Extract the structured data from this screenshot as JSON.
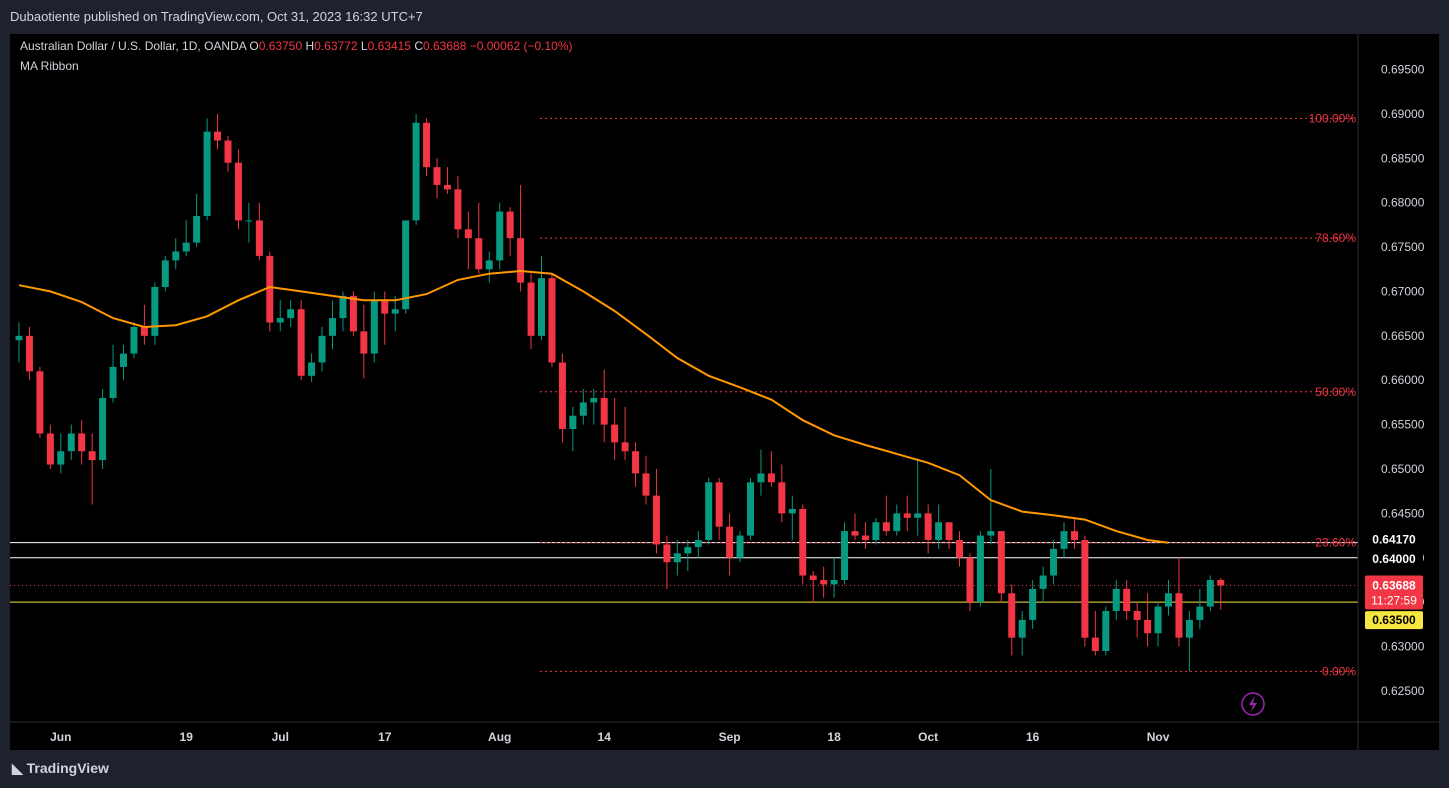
{
  "header": {
    "published": "Dubaotiente published on TradingView.com, Oct 31, 2023 16:32 UTC+7"
  },
  "legend": {
    "symbol": "Australian Dollar / U.S. Dollar, 1D, OANDA",
    "open_label": "O",
    "open": "0.63750",
    "high_label": "H",
    "high": "0.63772",
    "low_label": "L",
    "low": "0.63415",
    "close_label": "C",
    "close": "0.63688",
    "change": "−0.00062 (−0.10%)",
    "indicator": "MA Ribbon"
  },
  "footer": {
    "brand": "TradingView"
  },
  "colors": {
    "up": "#089981",
    "down": "#f23645",
    "ma": "#ff9800",
    "fib": "#f23645",
    "yellow": "#f5e642"
  },
  "chart_data": {
    "type": "candlestick",
    "ylim": [
      0.6215,
      0.699
    ],
    "y_ticks": [
      "0.69500",
      "0.69000",
      "0.68500",
      "0.68000",
      "0.67500",
      "0.67000",
      "0.66500",
      "0.66000",
      "0.65500",
      "0.65000",
      "0.64500",
      "0.64000",
      "0.63500",
      "0.63000",
      "0.62500"
    ],
    "x_ticks": [
      {
        "label": "Jun",
        "i": 4
      },
      {
        "label": "19",
        "i": 16
      },
      {
        "label": "Jul",
        "i": 25
      },
      {
        "label": "17",
        "i": 35
      },
      {
        "label": "Aug",
        "i": 46
      },
      {
        "label": "14",
        "i": 56
      },
      {
        "label": "Sep",
        "i": 68
      },
      {
        "label": "18",
        "i": 78
      },
      {
        "label": "Oct",
        "i": 87
      },
      {
        "label": "16",
        "i": 97
      },
      {
        "label": "Nov",
        "i": 109
      }
    ],
    "fib_levels": [
      {
        "label": "100.00%",
        "price": 0.6895
      },
      {
        "label": "78.60%",
        "price": 0.676
      },
      {
        "label": "50.00%",
        "price": 0.6587
      },
      {
        "label": "23.60%",
        "price": 0.6417
      },
      {
        "label": "0.00%",
        "price": 0.6272
      }
    ],
    "horizontal_lines": [
      {
        "label": "0.64170",
        "price": 0.6417,
        "color": "#ffffff"
      },
      {
        "label": "0.64000",
        "price": 0.64,
        "color": "#ffffff"
      },
      {
        "label": "0.63500",
        "price": 0.635,
        "color": "#f5e642"
      }
    ],
    "last_price": {
      "label": "0.63688",
      "price": 0.63688,
      "countdown": "11:27:59"
    },
    "ohlc": [
      [
        0.6645,
        0.6665,
        0.662,
        0.665
      ],
      [
        0.665,
        0.666,
        0.66,
        0.661
      ],
      [
        0.661,
        0.6615,
        0.6535,
        0.654
      ],
      [
        0.654,
        0.655,
        0.65,
        0.6505
      ],
      [
        0.6505,
        0.654,
        0.6495,
        0.652
      ],
      [
        0.652,
        0.655,
        0.651,
        0.654
      ],
      [
        0.654,
        0.6555,
        0.6505,
        0.652
      ],
      [
        0.652,
        0.654,
        0.646,
        0.651
      ],
      [
        0.651,
        0.659,
        0.65,
        0.658
      ],
      [
        0.658,
        0.664,
        0.6575,
        0.6615
      ],
      [
        0.6615,
        0.664,
        0.66,
        0.663
      ],
      [
        0.663,
        0.6665,
        0.6625,
        0.666
      ],
      [
        0.666,
        0.6685,
        0.664,
        0.665
      ],
      [
        0.665,
        0.671,
        0.664,
        0.6705
      ],
      [
        0.6705,
        0.674,
        0.67,
        0.6735
      ],
      [
        0.6735,
        0.676,
        0.6725,
        0.6745
      ],
      [
        0.6745,
        0.678,
        0.674,
        0.6755
      ],
      [
        0.6755,
        0.681,
        0.675,
        0.6785
      ],
      [
        0.6785,
        0.6895,
        0.678,
        0.688
      ],
      [
        0.688,
        0.69,
        0.686,
        0.687
      ],
      [
        0.687,
        0.6875,
        0.6835,
        0.6845
      ],
      [
        0.6845,
        0.686,
        0.677,
        0.678
      ],
      [
        0.678,
        0.68,
        0.6755,
        0.678
      ],
      [
        0.678,
        0.68,
        0.6735,
        0.674
      ],
      [
        0.674,
        0.6745,
        0.6655,
        0.6665
      ],
      [
        0.6665,
        0.669,
        0.6655,
        0.667
      ],
      [
        0.667,
        0.669,
        0.666,
        0.668
      ],
      [
        0.668,
        0.669,
        0.66,
        0.6605
      ],
      [
        0.6605,
        0.663,
        0.6598,
        0.662
      ],
      [
        0.662,
        0.666,
        0.661,
        0.665
      ],
      [
        0.665,
        0.669,
        0.6635,
        0.667
      ],
      [
        0.667,
        0.67,
        0.6655,
        0.6695
      ],
      [
        0.6695,
        0.67,
        0.665,
        0.6655
      ],
      [
        0.6655,
        0.6685,
        0.6602,
        0.663
      ],
      [
        0.663,
        0.67,
        0.662,
        0.669
      ],
      [
        0.669,
        0.67,
        0.664,
        0.6675
      ],
      [
        0.6675,
        0.6695,
        0.6655,
        0.668
      ],
      [
        0.668,
        0.678,
        0.6675,
        0.678
      ],
      [
        0.678,
        0.69,
        0.6775,
        0.689
      ],
      [
        0.689,
        0.6895,
        0.683,
        0.684
      ],
      [
        0.684,
        0.685,
        0.6805,
        0.682
      ],
      [
        0.682,
        0.684,
        0.681,
        0.6815
      ],
      [
        0.6815,
        0.683,
        0.676,
        0.677
      ],
      [
        0.677,
        0.679,
        0.6725,
        0.676
      ],
      [
        0.676,
        0.68,
        0.672,
        0.6725
      ],
      [
        0.6725,
        0.6745,
        0.671,
        0.6735
      ],
      [
        0.6735,
        0.68,
        0.6725,
        0.679
      ],
      [
        0.679,
        0.6795,
        0.674,
        0.676
      ],
      [
        0.676,
        0.682,
        0.67,
        0.671
      ],
      [
        0.671,
        0.672,
        0.6635,
        0.665
      ],
      [
        0.665,
        0.674,
        0.6645,
        0.6715
      ],
      [
        0.6715,
        0.672,
        0.6615,
        0.662
      ],
      [
        0.662,
        0.663,
        0.653,
        0.6545
      ],
      [
        0.6545,
        0.657,
        0.652,
        0.656
      ],
      [
        0.656,
        0.659,
        0.655,
        0.6575
      ],
      [
        0.6575,
        0.659,
        0.655,
        0.658
      ],
      [
        0.658,
        0.6612,
        0.653,
        0.655
      ],
      [
        0.655,
        0.658,
        0.651,
        0.653
      ],
      [
        0.653,
        0.657,
        0.651,
        0.652
      ],
      [
        0.652,
        0.653,
        0.648,
        0.6495
      ],
      [
        0.6495,
        0.6515,
        0.646,
        0.647
      ],
      [
        0.647,
        0.65,
        0.6405,
        0.6415
      ],
      [
        0.6415,
        0.6425,
        0.6365,
        0.6395
      ],
      [
        0.6395,
        0.642,
        0.638,
        0.6405
      ],
      [
        0.6405,
        0.642,
        0.6385,
        0.6412
      ],
      [
        0.6412,
        0.643,
        0.64,
        0.642
      ],
      [
        0.642,
        0.649,
        0.6415,
        0.6485
      ],
      [
        0.6485,
        0.649,
        0.642,
        0.6435
      ],
      [
        0.6435,
        0.645,
        0.638,
        0.64
      ],
      [
        0.64,
        0.643,
        0.6395,
        0.6425
      ],
      [
        0.6425,
        0.649,
        0.642,
        0.6485
      ],
      [
        0.6485,
        0.6522,
        0.647,
        0.6495
      ],
      [
        0.6495,
        0.652,
        0.648,
        0.6485
      ],
      [
        0.6485,
        0.6505,
        0.644,
        0.645
      ],
      [
        0.645,
        0.647,
        0.642,
        0.6455
      ],
      [
        0.6455,
        0.646,
        0.637,
        0.638
      ],
      [
        0.638,
        0.6385,
        0.635,
        0.6375
      ],
      [
        0.6375,
        0.639,
        0.6355,
        0.637
      ],
      [
        0.637,
        0.64,
        0.6355,
        0.6375
      ],
      [
        0.6375,
        0.644,
        0.637,
        0.643
      ],
      [
        0.643,
        0.645,
        0.642,
        0.6425
      ],
      [
        0.6425,
        0.644,
        0.641,
        0.642
      ],
      [
        0.642,
        0.6445,
        0.6415,
        0.644
      ],
      [
        0.644,
        0.647,
        0.6425,
        0.643
      ],
      [
        0.643,
        0.646,
        0.6425,
        0.645
      ],
      [
        0.645,
        0.647,
        0.643,
        0.6445
      ],
      [
        0.6445,
        0.6512,
        0.6425,
        0.645
      ],
      [
        0.645,
        0.646,
        0.6405,
        0.642
      ],
      [
        0.642,
        0.646,
        0.641,
        0.644
      ],
      [
        0.644,
        0.644,
        0.641,
        0.642
      ],
      [
        0.642,
        0.643,
        0.639,
        0.64
      ],
      [
        0.64,
        0.6405,
        0.634,
        0.635
      ],
      [
        0.635,
        0.643,
        0.6345,
        0.6425
      ],
      [
        0.6425,
        0.65,
        0.6415,
        0.643
      ],
      [
        0.643,
        0.643,
        0.635,
        0.636
      ],
      [
        0.636,
        0.637,
        0.629,
        0.631
      ],
      [
        0.631,
        0.634,
        0.629,
        0.633
      ],
      [
        0.633,
        0.6375,
        0.632,
        0.6365
      ],
      [
        0.6365,
        0.639,
        0.635,
        0.638
      ],
      [
        0.638,
        0.642,
        0.637,
        0.641
      ],
      [
        0.641,
        0.644,
        0.64,
        0.643
      ],
      [
        0.643,
        0.6445,
        0.641,
        0.642
      ],
      [
        0.642,
        0.6425,
        0.63,
        0.631
      ],
      [
        0.631,
        0.634,
        0.629,
        0.6295
      ],
      [
        0.6295,
        0.6345,
        0.629,
        0.634
      ],
      [
        0.634,
        0.6375,
        0.633,
        0.6365
      ],
      [
        0.6365,
        0.6375,
        0.633,
        0.634
      ],
      [
        0.634,
        0.635,
        0.631,
        0.633
      ],
      [
        0.633,
        0.636,
        0.63,
        0.6315
      ],
      [
        0.6315,
        0.635,
        0.63,
        0.6345
      ],
      [
        0.6345,
        0.6375,
        0.6335,
        0.636
      ],
      [
        0.636,
        0.64,
        0.63,
        0.631
      ],
      [
        0.631,
        0.634,
        0.6272,
        0.633
      ],
      [
        0.633,
        0.6365,
        0.632,
        0.6345
      ],
      [
        0.6345,
        0.638,
        0.634,
        0.6375
      ],
      [
        0.6375,
        0.63772,
        0.63415,
        0.63688
      ]
    ],
    "ma": [
      [
        0,
        0.6707
      ],
      [
        3,
        0.67
      ],
      [
        6,
        0.6688
      ],
      [
        9,
        0.667
      ],
      [
        12,
        0.666
      ],
      [
        15,
        0.6662
      ],
      [
        18,
        0.6672
      ],
      [
        21,
        0.669
      ],
      [
        24,
        0.6705
      ],
      [
        27,
        0.67
      ],
      [
        30,
        0.6695
      ],
      [
        33,
        0.669
      ],
      [
        36,
        0.669
      ],
      [
        39,
        0.6697
      ],
      [
        42,
        0.6713
      ],
      [
        45,
        0.672
      ],
      [
        48,
        0.6723
      ],
      [
        51,
        0.672
      ],
      [
        54,
        0.67
      ],
      [
        57,
        0.6678
      ],
      [
        60,
        0.6652
      ],
      [
        63,
        0.6625
      ],
      [
        66,
        0.6605
      ],
      [
        69,
        0.6592
      ],
      [
        72,
        0.6578
      ],
      [
        75,
        0.6555
      ],
      [
        78,
        0.6538
      ],
      [
        81,
        0.6527
      ],
      [
        84,
        0.6517
      ],
      [
        87,
        0.6507
      ],
      [
        90,
        0.6493
      ],
      [
        93,
        0.6465
      ],
      [
        96,
        0.6452
      ],
      [
        99,
        0.6448
      ],
      [
        102,
        0.6443
      ],
      [
        105,
        0.643
      ],
      [
        108,
        0.642
      ],
      [
        110,
        0.6417
      ]
    ]
  }
}
